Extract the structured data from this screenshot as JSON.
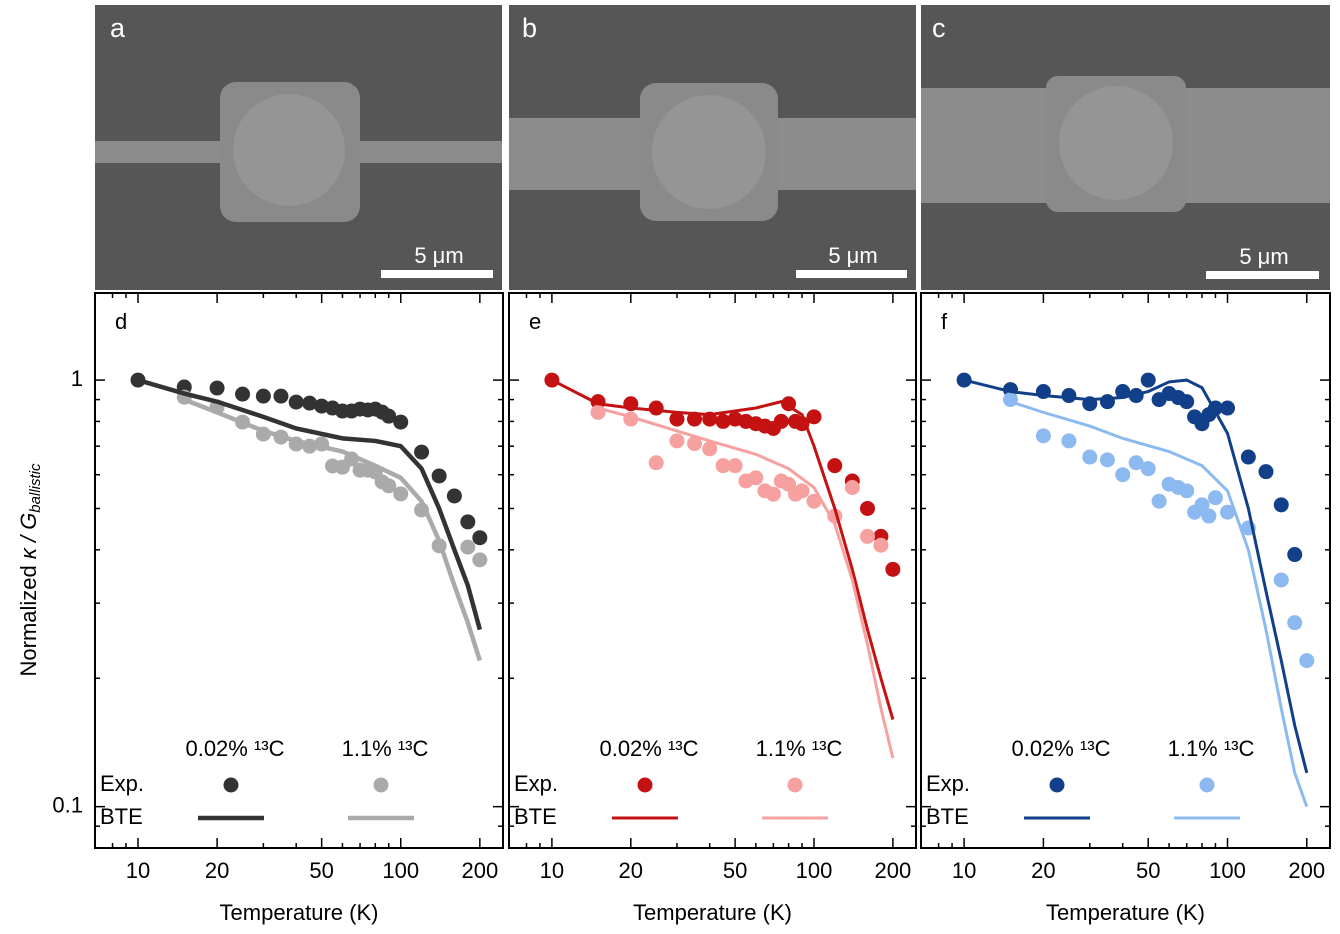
{
  "images": [
    {
      "label": "a",
      "scale": "5 μm"
    },
    {
      "label": "b",
      "scale": "5 μm"
    },
    {
      "label": "c",
      "scale": "5 μm"
    }
  ],
  "ylabel": [
    "Normalized ",
    "κ / G",
    "ballistic"
  ],
  "chart_data": [
    {
      "type": "scatter",
      "label": "d",
      "xlabel": "Temperature (K)",
      "log_x": true,
      "log_y": true,
      "xlim": [
        6.86,
        245
      ],
      "ylim": [
        0.08,
        1.6
      ],
      "xticks": [
        10,
        20,
        50,
        100,
        200
      ],
      "yticks": [
        0.1,
        1
      ],
      "xminorticks": [
        8,
        9,
        30,
        40,
        60,
        70,
        80,
        90
      ],
      "yminorticks": [
        0.09,
        0.2,
        0.3,
        0.4,
        0.5,
        0.6,
        0.7,
        0.8,
        0.9
      ],
      "show_ytick_labels": true,
      "legend_rows": [
        "Exp.",
        "BTE"
      ],
      "series": [
        {
          "name": "0.02% ¹³C",
          "kind": "scatter",
          "color": "#333333",
          "x": [
            10,
            15,
            20,
            25,
            30,
            35,
            40,
            45,
            50,
            55,
            60,
            65,
            70,
            75,
            80,
            85,
            90,
            100,
            120,
            140,
            160,
            180,
            200
          ],
          "values": [
            1.0,
            0.963,
            0.958,
            0.927,
            0.917,
            0.917,
            0.888,
            0.883,
            0.869,
            0.86,
            0.846,
            0.846,
            0.855,
            0.851,
            0.855,
            0.841,
            0.823,
            0.797,
            0.678,
            0.596,
            0.535,
            0.465,
            0.427
          ]
        },
        {
          "name": "1.1% ¹³C",
          "kind": "scatter",
          "color": "#aaaaaa",
          "x": [
            15,
            20,
            25,
            30,
            35,
            40,
            45,
            50,
            55,
            60,
            65,
            70,
            75,
            80,
            85,
            90,
            100,
            120,
            140,
            180,
            200
          ],
          "values": [
            0.912,
            0.865,
            0.797,
            0.747,
            0.735,
            0.708,
            0.7,
            0.708,
            0.629,
            0.625,
            0.653,
            0.615,
            0.615,
            0.609,
            0.577,
            0.565,
            0.541,
            0.496,
            0.409,
            0.406,
            0.379
          ]
        },
        {
          "name": "0.02% ¹³C",
          "kind": "line",
          "color": "#333333",
          "x": [
            10,
            15,
            20,
            30,
            40,
            60,
            80,
            100,
            120,
            140,
            160,
            180,
            200
          ],
          "values": [
            1.0,
            0.93,
            0.89,
            0.82,
            0.77,
            0.73,
            0.72,
            0.7,
            0.62,
            0.5,
            0.4,
            0.33,
            0.26
          ]
        },
        {
          "name": "1.1% ¹³C",
          "kind": "line",
          "color": "#aaaaaa",
          "x": [
            15,
            20,
            30,
            40,
            60,
            80,
            100,
            120,
            140,
            160,
            180,
            200
          ],
          "values": [
            0.9,
            0.84,
            0.76,
            0.72,
            0.68,
            0.63,
            0.59,
            0.52,
            0.42,
            0.33,
            0.27,
            0.22
          ]
        }
      ]
    },
    {
      "type": "scatter",
      "label": "e",
      "xlabel": "Temperature (K)",
      "log_x": true,
      "log_y": true,
      "xlim": [
        6.86,
        245
      ],
      "ylim": [
        0.08,
        1.6
      ],
      "xticks": [
        10,
        20,
        50,
        100,
        200
      ],
      "yticks": [
        0.1,
        1
      ],
      "xminorticks": [
        8,
        9,
        30,
        40,
        60,
        70,
        80,
        90
      ],
      "yminorticks": [
        0.09,
        0.2,
        0.3,
        0.4,
        0.5,
        0.6,
        0.7,
        0.8,
        0.9
      ],
      "show_ytick_labels": false,
      "legend_rows": [
        "Exp.",
        "BTE"
      ],
      "series": [
        {
          "name": "0.02% ¹³C",
          "kind": "scatter",
          "color": "#c41212",
          "x": [
            10,
            15,
            20,
            25,
            30,
            35,
            40,
            45,
            50,
            55,
            60,
            65,
            70,
            75,
            80,
            85,
            90,
            100,
            120,
            140,
            160,
            180,
            200
          ],
          "values": [
            1.0,
            0.89,
            0.88,
            0.86,
            0.81,
            0.81,
            0.81,
            0.8,
            0.81,
            0.8,
            0.79,
            0.78,
            0.77,
            0.8,
            0.88,
            0.8,
            0.79,
            0.82,
            0.63,
            0.58,
            0.5,
            0.43,
            0.36
          ]
        },
        {
          "name": "1.1% ¹³C",
          "kind": "scatter",
          "color": "#f7a0a0",
          "x": [
            15,
            20,
            25,
            30,
            35,
            40,
            45,
            50,
            55,
            60,
            65,
            70,
            75,
            80,
            85,
            90,
            100,
            120,
            140,
            160,
            180
          ],
          "values": [
            0.84,
            0.81,
            0.64,
            0.72,
            0.71,
            0.69,
            0.63,
            0.63,
            0.58,
            0.59,
            0.55,
            0.54,
            0.58,
            0.57,
            0.54,
            0.55,
            0.52,
            0.48,
            0.56,
            0.43,
            0.41
          ]
        },
        {
          "name": "0.02% ¹³C",
          "kind": "line",
          "color": "#c41212",
          "x": [
            10,
            15,
            20,
            30,
            40,
            60,
            75,
            90,
            100,
            120,
            140,
            160,
            180,
            200
          ],
          "values": [
            1.0,
            0.88,
            0.86,
            0.84,
            0.83,
            0.86,
            0.89,
            0.83,
            0.7,
            0.5,
            0.36,
            0.26,
            0.2,
            0.16
          ]
        },
        {
          "name": "1.1% ¹³C",
          "kind": "line",
          "color": "#f7a0a0",
          "x": [
            15,
            20,
            30,
            40,
            60,
            80,
            100,
            120,
            140,
            160,
            180,
            200
          ],
          "values": [
            0.86,
            0.82,
            0.76,
            0.72,
            0.67,
            0.62,
            0.56,
            0.46,
            0.34,
            0.24,
            0.17,
            0.13
          ]
        }
      ]
    },
    {
      "type": "scatter",
      "label": "f",
      "xlabel": "Temperature (K)",
      "log_x": true,
      "log_y": true,
      "xlim": [
        6.86,
        245
      ],
      "ylim": [
        0.08,
        1.6
      ],
      "xticks": [
        10,
        20,
        50,
        100,
        200
      ],
      "yticks": [
        0.1,
        1
      ],
      "xminorticks": [
        8,
        9,
        30,
        40,
        60,
        70,
        80,
        90
      ],
      "yminorticks": [
        0.09,
        0.2,
        0.3,
        0.4,
        0.5,
        0.6,
        0.7,
        0.8,
        0.9
      ],
      "show_ytick_labels": false,
      "legend_rows": [
        "Exp.",
        "BTE"
      ],
      "series": [
        {
          "name": "0.02% ¹³C",
          "kind": "scatter",
          "color": "#123f8a",
          "x": [
            10,
            15,
            20,
            25,
            30,
            35,
            40,
            45,
            50,
            55,
            60,
            65,
            70,
            75,
            80,
            85,
            90,
            100,
            120,
            140,
            160,
            180
          ],
          "values": [
            1.0,
            0.95,
            0.94,
            0.92,
            0.88,
            0.89,
            0.94,
            0.92,
            1.0,
            0.9,
            0.93,
            0.91,
            0.89,
            0.82,
            0.79,
            0.83,
            0.86,
            0.86,
            0.66,
            0.61,
            0.51,
            0.39
          ]
        },
        {
          "name": "1.1% ¹³C",
          "kind": "scatter",
          "color": "#8cbaf0",
          "x": [
            15,
            20,
            25,
            30,
            35,
            40,
            45,
            50,
            55,
            60,
            65,
            70,
            75,
            80,
            85,
            90,
            100,
            120,
            160,
            180,
            200
          ],
          "values": [
            0.9,
            0.74,
            0.72,
            0.66,
            0.65,
            0.6,
            0.64,
            0.62,
            0.52,
            0.57,
            0.56,
            0.55,
            0.49,
            0.51,
            0.48,
            0.53,
            0.49,
            0.45,
            0.34,
            0.27,
            0.22
          ]
        },
        {
          "name": "0.02% ¹³C",
          "kind": "line",
          "color": "#123f8a",
          "x": [
            10,
            15,
            20,
            30,
            40,
            50,
            60,
            70,
            80,
            100,
            120,
            140,
            160,
            180,
            200
          ],
          "values": [
            1.0,
            0.94,
            0.92,
            0.9,
            0.91,
            0.94,
            0.99,
            1.0,
            0.96,
            0.75,
            0.5,
            0.32,
            0.22,
            0.155,
            0.12
          ]
        },
        {
          "name": "1.1% ¹³C",
          "kind": "line",
          "color": "#8cbaf0",
          "x": [
            15,
            20,
            30,
            40,
            60,
            80,
            100,
            120,
            140,
            160,
            180,
            200
          ],
          "values": [
            0.89,
            0.84,
            0.78,
            0.73,
            0.68,
            0.63,
            0.55,
            0.4,
            0.26,
            0.17,
            0.12,
            0.1
          ]
        }
      ]
    }
  ]
}
